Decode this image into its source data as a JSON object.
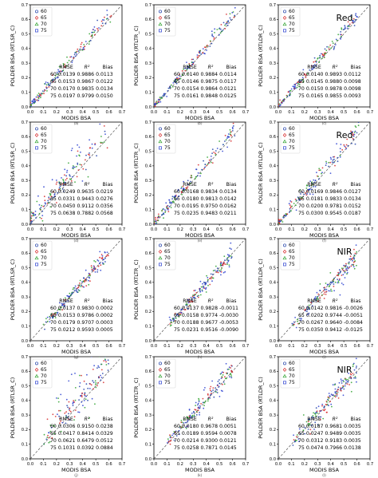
{
  "figure": {
    "column_bands": [
      "Red",
      "NIR"
    ],
    "legend_entries": [
      {
        "label": "60",
        "marker": "circle",
        "color": "#1f3fa8"
      },
      {
        "label": "65",
        "marker": "diamond",
        "color": "#d62728"
      },
      {
        "label": "70",
        "marker": "triangle",
        "color": "#2ca02c"
      },
      {
        "label": "75",
        "marker": "square",
        "color": "#2a3fd0"
      }
    ],
    "stats_header": {
      "col1": "RMSE",
      "col2": "R²",
      "col3": "Bias"
    }
  },
  "chart_data": [
    {
      "type": "scatter",
      "panel": "(a)",
      "band": "",
      "xlabel": "MODIS BSA",
      "ylabel": "POLDER BSA (RTLSR_C)",
      "xlim": [
        0,
        0.7
      ],
      "ylim": [
        0,
        0.7
      ],
      "xticks": [
        "0.0",
        "0.1",
        "0.2",
        "0.3",
        "0.4",
        "0.5",
        "0.6",
        "0.7"
      ],
      "yticks": [
        "0.0",
        "0.1",
        "0.2",
        "0.3",
        "0.4",
        "0.5",
        "0.6",
        "0.7"
      ],
      "stats": [
        {
          "angle": "60",
          "rmse": "0.0139",
          "r2": "0.9886",
          "bias": "0.0113"
        },
        {
          "angle": "65",
          "rmse": "0.0153",
          "r2": "0.9867",
          "bias": "0.0122"
        },
        {
          "angle": "70",
          "rmse": "0.0170",
          "r2": "0.9835",
          "bias": "0.0134"
        },
        {
          "angle": "75",
          "rmse": "0.0197",
          "r2": "0.9799",
          "bias": "0.0150"
        }
      ]
    },
    {
      "type": "scatter",
      "panel": "(b)",
      "band": "",
      "xlabel": "MODIS BSA",
      "ylabel": "POLDER BSA (RTLTR_C)",
      "xlim": [
        0,
        0.7
      ],
      "ylim": [
        0,
        0.7
      ],
      "xticks": [
        "0.0",
        "0.1",
        "0.2",
        "0.3",
        "0.4",
        "0.5",
        "0.6",
        "0.7"
      ],
      "yticks": [
        "0.0",
        "0.1",
        "0.2",
        "0.3",
        "0.4",
        "0.5",
        "0.6",
        "0.7"
      ],
      "stats": [
        {
          "angle": "60",
          "rmse": "0.0140",
          "r2": "0.9884",
          "bias": "0.0114"
        },
        {
          "angle": "65",
          "rmse": "0.0146",
          "r2": "0.9875",
          "bias": "0.0117"
        },
        {
          "angle": "70",
          "rmse": "0.0154",
          "r2": "0.9864",
          "bias": "0.0121"
        },
        {
          "angle": "75",
          "rmse": "0.0161",
          "r2": "0.9848",
          "bias": "0.0125"
        }
      ]
    },
    {
      "type": "scatter",
      "panel": "(c)",
      "band": "Red",
      "xlabel": "MODIS BSA",
      "ylabel": "POLDER BSA (RTLDR_C)",
      "xlim": [
        0,
        0.7
      ],
      "ylim": [
        0,
        0.7
      ],
      "xticks": [
        "0.0",
        "0.1",
        "0.2",
        "0.3",
        "0.4",
        "0.5",
        "0.6",
        "0.7"
      ],
      "yticks": [
        "0.0",
        "0.1",
        "0.2",
        "0.3",
        "0.4",
        "0.5",
        "0.6",
        "0.7"
      ],
      "stats": [
        {
          "angle": "60",
          "rmse": "0.0140",
          "r2": "0.9893",
          "bias": "0.0112"
        },
        {
          "angle": "65",
          "rmse": "0.0145",
          "r2": "0.9880",
          "bias": "0.0098"
        },
        {
          "angle": "70",
          "rmse": "0.0150",
          "r2": "0.9878",
          "bias": "0.0098"
        },
        {
          "angle": "75",
          "rmse": "0.0165",
          "r2": "0.9855",
          "bias": "0.0093"
        }
      ]
    },
    {
      "type": "scatter",
      "panel": "(d)",
      "band": "",
      "xlabel": "MODIS BSA",
      "ylabel": "POLDER BSA (RTLSR_C)",
      "xlim": [
        0,
        0.7
      ],
      "ylim": [
        0,
        0.7
      ],
      "xticks": [
        "0.0",
        "0.1",
        "0.2",
        "0.3",
        "0.4",
        "0.5",
        "0.6",
        "0.7"
      ],
      "yticks": [
        "0.0",
        "0.1",
        "0.2",
        "0.3",
        "0.4",
        "0.5",
        "0.6",
        "0.7"
      ],
      "stats": [
        {
          "angle": "60",
          "rmse": "0.0249",
          "r2": "0.9635",
          "bias": "0.0219"
        },
        {
          "angle": "65",
          "rmse": "0.0331",
          "r2": "0.9443",
          "bias": "0.0276"
        },
        {
          "angle": "70",
          "rmse": "0.0450",
          "r2": "0.9112",
          "bias": "0.0356"
        },
        {
          "angle": "75",
          "rmse": "0.0638",
          "r2": "0.7882",
          "bias": "0.0568"
        }
      ]
    },
    {
      "type": "scatter",
      "panel": "(e)",
      "band": "",
      "xlabel": "MODIS BSA",
      "ylabel": "POLDER BSA (RTLTR_C)",
      "xlim": [
        0,
        0.7
      ],
      "ylim": [
        0,
        0.7
      ],
      "xticks": [
        "0.0",
        "0.1",
        "0.2",
        "0.3",
        "0.4",
        "0.5",
        "0.6",
        "0.7"
      ],
      "yticks": [
        "0.0",
        "0.1",
        "0.2",
        "0.3",
        "0.4",
        "0.5",
        "0.6",
        "0.7"
      ],
      "stats": [
        {
          "angle": "60",
          "rmse": "0.0168",
          "r2": "0.9834",
          "bias": "0.0134"
        },
        {
          "angle": "65",
          "rmse": "0.0180",
          "r2": "0.9813",
          "bias": "0.0142"
        },
        {
          "angle": "70",
          "rmse": "0.0195",
          "r2": "0.9750",
          "bias": "0.0162"
        },
        {
          "angle": "75",
          "rmse": "0.0235",
          "r2": "0.9483",
          "bias": "0.0211"
        }
      ]
    },
    {
      "type": "scatter",
      "panel": "(f)",
      "band": "Red",
      "xlabel": "MODIS BSA",
      "ylabel": "POLDER BSA (RTLDR_C)",
      "xlim": [
        0,
        0.7
      ],
      "ylim": [
        0,
        0.7
      ],
      "xticks": [
        "0.0",
        "0.1",
        "0.2",
        "0.3",
        "0.4",
        "0.5",
        "0.6",
        "0.7"
      ],
      "yticks": [
        "0.0",
        "0.1",
        "0.2",
        "0.3",
        "0.4",
        "0.5",
        "0.6",
        "0.7"
      ],
      "stats": [
        {
          "angle": "60",
          "rmse": "0.0169",
          "r2": "0.9846",
          "bias": "0.0127"
        },
        {
          "angle": "65",
          "rmse": "0.0181",
          "r2": "0.9833",
          "bias": "0.0134"
        },
        {
          "angle": "70",
          "rmse": "0.0200",
          "r2": "0.9781",
          "bias": "0.0152"
        },
        {
          "angle": "75",
          "rmse": "0.0300",
          "r2": "0.9545",
          "bias": "0.0187"
        }
      ]
    },
    {
      "type": "scatter",
      "panel": "(g)",
      "band": "",
      "xlabel": "MODIS BSA",
      "ylabel": "POLDER BSA (RTLSR_C)",
      "xlim": [
        0,
        0.7
      ],
      "ylim": [
        0,
        0.7
      ],
      "xticks": [
        "0.0",
        "0.1",
        "0.2",
        "0.3",
        "0.4",
        "0.5",
        "0.6",
        "0.7"
      ],
      "yticks": [
        "0.0",
        "0.1",
        "0.2",
        "0.3",
        "0.4",
        "0.5",
        "0.6",
        "0.7"
      ],
      "stats": [
        {
          "angle": "60",
          "rmse": "0.0137",
          "r2": "0.9830",
          "bias": "0.0002"
        },
        {
          "angle": "65",
          "rmse": "0.0153",
          "r2": "0.9786",
          "bias": "0.0002"
        },
        {
          "angle": "70",
          "rmse": "0.0179",
          "r2": "0.9707",
          "bias": "0.0003"
        },
        {
          "angle": "75",
          "rmse": "0.0212",
          "r2": "0.9593",
          "bias": "0.0005"
        }
      ]
    },
    {
      "type": "scatter",
      "panel": "(h)",
      "band": "",
      "xlabel": "MODIS BSA",
      "ylabel": "POLDER BSA (RTLTR_C)",
      "xlim": [
        0,
        0.7
      ],
      "ylim": [
        0,
        0.7
      ],
      "xticks": [
        "0.0",
        "0.1",
        "0.2",
        "0.3",
        "0.4",
        "0.5",
        "0.6",
        "0.7"
      ],
      "yticks": [
        "0.0",
        "0.1",
        "0.2",
        "0.3",
        "0.4",
        "0.5",
        "0.6",
        "0.7"
      ],
      "stats": [
        {
          "angle": "60",
          "rmse": "0.0137",
          "r2": "0.9828",
          "bias": "-0.0011"
        },
        {
          "angle": "65",
          "rmse": "0.0158",
          "r2": "0.9774",
          "bias": "-0.0030"
        },
        {
          "angle": "70",
          "rmse": "0.0188",
          "r2": "0.9677",
          "bias": "-0.0053"
        },
        {
          "angle": "75",
          "rmse": "0.0231",
          "r2": "0.9516",
          "bias": "-0.0090"
        }
      ]
    },
    {
      "type": "scatter",
      "panel": "(i)",
      "band": "NIR",
      "xlabel": "MODIS BSA",
      "ylabel": "POLDER BSA (RTLDR_C)",
      "xlim": [
        0,
        0.7
      ],
      "ylim": [
        0,
        0.7
      ],
      "xticks": [
        "0.0",
        "0.1",
        "0.2",
        "0.3",
        "0.4",
        "0.5",
        "0.6",
        "0.7"
      ],
      "yticks": [
        "0.0",
        "0.1",
        "0.2",
        "0.3",
        "0.4",
        "0.5",
        "0.6",
        "0.7"
      ],
      "stats": [
        {
          "angle": "60",
          "rmse": "0.0142",
          "r2": "0.9816",
          "bias": "-0.0026"
        },
        {
          "angle": "65",
          "rmse": "0.0202",
          "r2": "0.9744",
          "bias": "-0.0051"
        },
        {
          "angle": "70",
          "rmse": "0.0267",
          "r2": "0.9640",
          "bias": "-0.0084"
        },
        {
          "angle": "75",
          "rmse": "0.0350",
          "r2": "0.9412",
          "bias": "-0.0125"
        }
      ]
    },
    {
      "type": "scatter",
      "panel": "(j)",
      "band": "",
      "xlabel": "MODIS BSA",
      "ylabel": "POLDER BSA (RTLSR_C)",
      "xlim": [
        0,
        0.7
      ],
      "ylim": [
        0,
        0.7
      ],
      "xticks": [
        "0.0",
        "0.1",
        "0.2",
        "0.3",
        "0.4",
        "0.5",
        "0.6",
        "0.7"
      ],
      "yticks": [
        "0.0",
        "0.1",
        "0.2",
        "0.3",
        "0.4",
        "0.5",
        "0.6",
        "0.7"
      ],
      "stats": [
        {
          "angle": "60",
          "rmse": "0.0306",
          "r2": "0.9150",
          "bias": "0.0238"
        },
        {
          "angle": "65",
          "rmse": "0.0417",
          "r2": "0.8414",
          "bias": "0.0329"
        },
        {
          "angle": "70",
          "rmse": "0.0621",
          "r2": "0.6479",
          "bias": "0.0512"
        },
        {
          "angle": "75",
          "rmse": "0.1031",
          "r2": "0.0392",
          "bias": "0.0884"
        }
      ]
    },
    {
      "type": "scatter",
      "panel": "(k)",
      "band": "",
      "xlabel": "MODIS BSA",
      "ylabel": "POLDER BSA (RTLTR_C)",
      "xlim": [
        0,
        0.7
      ],
      "ylim": [
        0,
        0.7
      ],
      "xticks": [
        "0.0",
        "0.1",
        "0.2",
        "0.3",
        "0.4",
        "0.5",
        "0.6",
        "0.7"
      ],
      "yticks": [
        "0.0",
        "0.1",
        "0.2",
        "0.3",
        "0.4",
        "0.5",
        "0.6",
        "0.7"
      ],
      "stats": [
        {
          "angle": "60",
          "rmse": "0.0180",
          "r2": "0.9678",
          "bias": "0.0051"
        },
        {
          "angle": "65",
          "rmse": "0.0189",
          "r2": "0.9594",
          "bias": "0.0078"
        },
        {
          "angle": "70",
          "rmse": "0.0214",
          "r2": "0.9300",
          "bias": "0.0121"
        },
        {
          "angle": "75",
          "rmse": "0.0258",
          "r2": "0.7871",
          "bias": "0.0145"
        }
      ]
    },
    {
      "type": "scatter",
      "panel": "(l)",
      "band": "NIR",
      "xlabel": "MODIS BSA",
      "ylabel": "POLDER BSA (RTLDR_C)",
      "xlim": [
        0,
        0.7
      ],
      "ylim": [
        0,
        0.7
      ],
      "xticks": [
        "0.0",
        "0.1",
        "0.2",
        "0.3",
        "0.4",
        "0.5",
        "0.6",
        "0.7"
      ],
      "yticks": [
        "0.0",
        "0.1",
        "0.2",
        "0.3",
        "0.4",
        "0.5",
        "0.6",
        "0.7"
      ],
      "stats": [
        {
          "angle": "60",
          "rmse": "0.0187",
          "r2": "0.9681",
          "bias": "0.0035"
        },
        {
          "angle": "65",
          "rmse": "0.0247",
          "r2": "0.9489",
          "bias": "0.0035"
        },
        {
          "angle": "70",
          "rmse": "0.0312",
          "r2": "0.9183",
          "bias": "0.0035"
        },
        {
          "angle": "75",
          "rmse": "0.0474",
          "r2": "0.7966",
          "bias": "0.0138"
        }
      ]
    }
  ]
}
